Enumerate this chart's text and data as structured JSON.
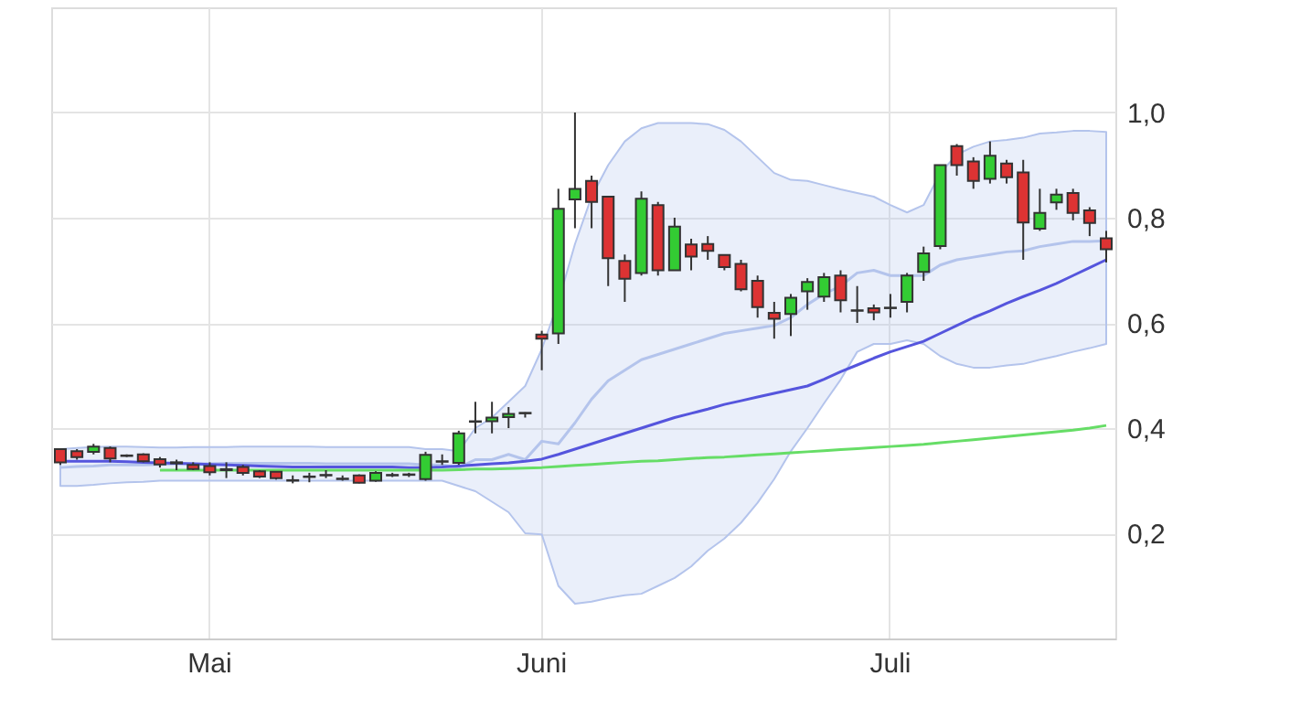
{
  "chart_data": {
    "type": "candlestick",
    "categories": [
      null,
      null,
      null,
      null,
      null,
      null,
      null,
      null,
      null,
      "Mai",
      null,
      null,
      null,
      null,
      null,
      null,
      null,
      null,
      null,
      null,
      null,
      null,
      null,
      null,
      null,
      null,
      null,
      null,
      null,
      "Juni",
      null,
      null,
      null,
      null,
      null,
      null,
      null,
      null,
      null,
      null,
      null,
      null,
      null,
      null,
      null,
      null,
      null,
      null,
      null,
      null,
      "Juli",
      null,
      null,
      null,
      null,
      null,
      null,
      null,
      null,
      null,
      null,
      null,
      null,
      null
    ],
    "ohlc": [
      [
        0.36,
        0.36,
        0.33,
        0.335
      ],
      [
        0.356,
        0.36,
        0.34,
        0.345
      ],
      [
        0.355,
        0.37,
        0.35,
        0.365
      ],
      [
        0.362,
        0.365,
        0.335,
        0.342
      ],
      [
        0.348,
        0.35,
        0.345,
        0.347
      ],
      [
        0.35,
        0.352,
        0.335,
        0.337
      ],
      [
        0.341,
        0.345,
        0.325,
        0.331
      ],
      [
        0.335,
        0.34,
        0.32,
        0.333
      ],
      [
        0.33,
        0.335,
        0.32,
        0.322
      ],
      [
        0.328,
        0.335,
        0.31,
        0.316
      ],
      [
        0.322,
        0.335,
        0.305,
        0.32
      ],
      [
        0.326,
        0.33,
        0.31,
        0.315
      ],
      [
        0.318,
        0.32,
        0.305,
        0.308
      ],
      [
        0.317,
        0.318,
        0.302,
        0.305
      ],
      [
        0.301,
        0.31,
        0.295,
        0.3
      ],
      [
        0.308,
        0.315,
        0.297,
        0.307
      ],
      [
        0.311,
        0.32,
        0.305,
        0.31
      ],
      [
        0.304,
        0.31,
        0.3,
        0.303
      ],
      [
        0.31,
        0.312,
        0.295,
        0.296
      ],
      [
        0.3,
        0.318,
        0.298,
        0.315
      ],
      [
        0.311,
        0.315,
        0.307,
        0.31
      ],
      [
        0.312,
        0.315,
        0.307,
        0.311
      ],
      [
        0.303,
        0.355,
        0.3,
        0.349
      ],
      [
        0.337,
        0.35,
        0.33,
        0.336
      ],
      [
        0.334,
        0.395,
        0.33,
        0.39
      ],
      [
        0.413,
        0.45,
        0.39,
        0.412
      ],
      [
        0.413,
        0.45,
        0.39,
        0.42
      ],
      [
        0.421,
        0.44,
        0.4,
        0.427
      ],
      [
        0.429,
        0.43,
        0.42,
        0.428
      ],
      [
        0.578,
        0.585,
        0.51,
        0.57
      ],
      [
        0.58,
        0.855,
        0.56,
        0.817
      ],
      [
        0.835,
        1.0,
        0.78,
        0.855
      ],
      [
        0.87,
        0.88,
        0.78,
        0.83
      ],
      [
        0.84,
        0.84,
        0.67,
        0.723
      ],
      [
        0.718,
        0.73,
        0.64,
        0.684
      ],
      [
        0.695,
        0.85,
        0.69,
        0.836
      ],
      [
        0.824,
        0.83,
        0.69,
        0.7
      ],
      [
        0.7,
        0.8,
        0.7,
        0.783
      ],
      [
        0.749,
        0.76,
        0.7,
        0.726
      ],
      [
        0.75,
        0.765,
        0.72,
        0.737
      ],
      [
        0.729,
        0.73,
        0.7,
        0.706
      ],
      [
        0.712,
        0.72,
        0.66,
        0.664
      ],
      [
        0.68,
        0.69,
        0.61,
        0.63
      ],
      [
        0.619,
        0.64,
        0.57,
        0.608
      ],
      [
        0.617,
        0.655,
        0.575,
        0.648
      ],
      [
        0.66,
        0.685,
        0.625,
        0.678
      ],
      [
        0.65,
        0.695,
        0.64,
        0.687
      ],
      [
        0.69,
        0.7,
        0.62,
        0.643
      ],
      [
        0.624,
        0.67,
        0.6,
        0.623
      ],
      [
        0.628,
        0.635,
        0.605,
        0.62
      ],
      [
        0.629,
        0.655,
        0.61,
        0.628
      ],
      [
        0.64,
        0.695,
        0.62,
        0.69
      ],
      [
        0.697,
        0.745,
        0.68,
        0.732
      ],
      [
        0.746,
        0.9,
        0.74,
        0.9
      ],
      [
        0.936,
        0.94,
        0.88,
        0.9
      ],
      [
        0.907,
        0.915,
        0.855,
        0.87
      ],
      [
        0.874,
        0.945,
        0.865,
        0.918
      ],
      [
        0.903,
        0.91,
        0.865,
        0.877
      ],
      [
        0.886,
        0.91,
        0.72,
        0.791
      ],
      [
        0.779,
        0.855,
        0.775,
        0.809
      ],
      [
        0.829,
        0.855,
        0.815,
        0.844
      ],
      [
        0.847,
        0.855,
        0.795,
        0.809
      ],
      [
        0.814,
        0.82,
        0.765,
        0.79
      ],
      [
        0.761,
        0.775,
        0.715,
        0.74
      ]
    ],
    "colors": [
      "#dd3333",
      "#dd3333",
      "#33cc33",
      "#dd3333",
      "#dd3333",
      "#dd3333",
      "#dd3333",
      "#dd3333",
      "#dd3333",
      "#dd3333",
      "#dd3333",
      "#dd3333",
      "#dd3333",
      "#dd3333",
      "#dd3333",
      "#dd3333",
      "#dd3333",
      "#dd3333",
      "#dd3333",
      "#33cc33",
      "#dd3333",
      "#dd3333",
      "#33cc33",
      "#dd3333",
      "#33cc33",
      "#dd3333",
      "#33cc33",
      "#33cc33",
      "#dd3333",
      "#dd3333",
      "#33cc33",
      "#33cc33",
      "#dd3333",
      "#dd3333",
      "#dd3333",
      "#33cc33",
      "#dd3333",
      "#33cc33",
      "#dd3333",
      "#dd3333",
      "#dd3333",
      "#dd3333",
      "#dd3333",
      "#dd3333",
      "#33cc33",
      "#33cc33",
      "#33cc33",
      "#dd3333",
      "#dd3333",
      "#dd3333",
      "#dd3333",
      "#33cc33",
      "#33cc33",
      "#33cc33",
      "#dd3333",
      "#dd3333",
      "#33cc33",
      "#dd3333",
      "#dd3333",
      "#33cc33",
      "#33cc33",
      "#dd3333",
      "#dd3333",
      "#dd3333"
    ],
    "series": [
      {
        "type": "line",
        "color": "#b4c4ec",
        "values": [
          0.325,
          0.327,
          0.328,
          0.33,
          0.33,
          0.33,
          0.331,
          0.332,
          0.332,
          0.332,
          0.333,
          0.333,
          0.333,
          0.333,
          0.333,
          0.333,
          0.332,
          0.332,
          0.332,
          0.332,
          0.332,
          0.332,
          0.33,
          0.33,
          0.325,
          0.34,
          0.34,
          0.35,
          0.34,
          0.375,
          0.37,
          0.41,
          0.455,
          0.49,
          0.51,
          0.53,
          0.54,
          0.55,
          0.56,
          0.57,
          0.58,
          0.585,
          0.59,
          0.595,
          0.61,
          0.635,
          0.655,
          0.67,
          0.695,
          0.7,
          0.69,
          0.69,
          0.69,
          0.71,
          0.72,
          0.725,
          0.73,
          0.735,
          0.737,
          0.745,
          0.75,
          0.755,
          0.755,
          0.756
        ],
        "lower": [
          0.29,
          0.29,
          0.292,
          0.295,
          0.297,
          0.298,
          0.3,
          0.3,
          0.3,
          0.3,
          0.3,
          0.3,
          0.3,
          0.3,
          0.3,
          0.3,
          0.3,
          0.3,
          0.3,
          0.3,
          0.3,
          0.3,
          0.3,
          0.3,
          0.29,
          0.28,
          0.26,
          0.24,
          0.2,
          0.198,
          0.1,
          0.066,
          0.07,
          0.077,
          0.082,
          0.085,
          0.1,
          0.115,
          0.137,
          0.167,
          0.19,
          0.22,
          0.258,
          0.303,
          0.356,
          0.4,
          0.447,
          0.492,
          0.545,
          0.56,
          0.56,
          0.567,
          0.56,
          0.537,
          0.522,
          0.515,
          0.515,
          0.519,
          0.522,
          0.53,
          0.537,
          0.545,
          0.552,
          0.56
        ],
        "upper": [
          0.36,
          0.362,
          0.364,
          0.365,
          0.365,
          0.364,
          0.363,
          0.363,
          0.364,
          0.364,
          0.364,
          0.365,
          0.365,
          0.365,
          0.365,
          0.365,
          0.364,
          0.364,
          0.364,
          0.364,
          0.364,
          0.364,
          0.36,
          0.36,
          0.356,
          0.4,
          0.42,
          0.45,
          0.48,
          0.55,
          0.64,
          0.75,
          0.84,
          0.9,
          0.945,
          0.97,
          0.98,
          0.98,
          0.98,
          0.978,
          0.967,
          0.945,
          0.915,
          0.885,
          0.872,
          0.87,
          0.862,
          0.854,
          0.847,
          0.84,
          0.824,
          0.81,
          0.824,
          0.885,
          0.92,
          0.935,
          0.945,
          0.948,
          0.952,
          0.96,
          0.962,
          0.965,
          0.965,
          0.963
        ]
      },
      {
        "type": "line",
        "color": "#5555dd",
        "values": [
          0.337,
          0.337,
          0.337,
          0.337,
          0.336,
          0.335,
          0.334,
          0.333,
          0.332,
          0.331,
          0.33,
          0.329,
          0.328,
          0.327,
          0.326,
          0.326,
          0.326,
          0.326,
          0.326,
          0.326,
          0.326,
          0.325,
          0.325,
          0.326,
          0.328,
          0.33,
          0.332,
          0.334,
          0.337,
          0.341,
          0.35,
          0.36,
          0.37,
          0.38,
          0.39,
          0.4,
          0.41,
          0.42,
          0.428,
          0.436,
          0.445,
          0.452,
          0.459,
          0.466,
          0.473,
          0.48,
          0.493,
          0.507,
          0.52,
          0.533,
          0.545,
          0.555,
          0.565,
          0.58,
          0.595,
          0.61,
          0.623,
          0.637,
          0.65,
          0.662,
          0.675,
          0.69,
          0.705,
          0.72
        ]
      },
      {
        "type": "line",
        "color": "#66dd66",
        "values": [
          null,
          null,
          null,
          null,
          null,
          null,
          0.32,
          0.32,
          0.32,
          0.32,
          0.32,
          0.32,
          0.32,
          0.32,
          0.32,
          0.32,
          0.32,
          0.32,
          0.32,
          0.32,
          0.32,
          0.32,
          0.32,
          0.32,
          0.321,
          0.322,
          0.322,
          0.323,
          0.324,
          0.325,
          0.327,
          0.329,
          0.331,
          0.333,
          0.335,
          0.337,
          0.338,
          0.34,
          0.342,
          0.344,
          0.345,
          0.347,
          0.349,
          0.351,
          0.353,
          0.355,
          0.357,
          0.359,
          0.361,
          0.363,
          0.365,
          0.367,
          0.369,
          0.372,
          0.375,
          0.378,
          0.381,
          0.384,
          0.387,
          0.39,
          0.393,
          0.396,
          0.4,
          0.405
        ]
      }
    ],
    "ylim": [
      0,
      1.2
    ],
    "yticks": [
      {
        "value": 0.2,
        "label": "0,2"
      },
      {
        "value": 0.4,
        "label": "0,4"
      },
      {
        "value": 0.6,
        "label": "0,6"
      },
      {
        "value": 0.8,
        "label": "0,8"
      },
      {
        "value": 1.0,
        "label": "1,0"
      }
    ],
    "grid": true
  }
}
